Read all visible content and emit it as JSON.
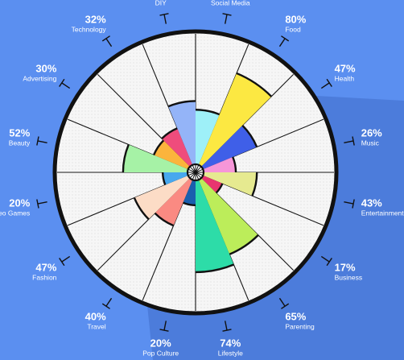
{
  "chart_data": {
    "type": "polar-bar",
    "value_unit": "%",
    "rlim": [
      0,
      100
    ],
    "grid": true,
    "colors": {
      "background": "#5b8ff0",
      "disc": "#f6f6f6",
      "rim": "#111111",
      "text": "#ffffff"
    },
    "categories": [
      {
        "name": "Social Media",
        "value": 44,
        "color": "#9ef0f8"
      },
      {
        "name": "Food",
        "value": 80,
        "color": "#fce842"
      },
      {
        "name": "Health",
        "value": 47,
        "color": "#3f5fe8"
      },
      {
        "name": "Music",
        "value": 26,
        "color": "#f696d8"
      },
      {
        "name": "Entertainment",
        "value": 43,
        "color": "#e6ea90"
      },
      {
        "name": "Business",
        "value": 17,
        "color": "#e8356f"
      },
      {
        "name": "Parenting",
        "value": 65,
        "color": "#bced5a"
      },
      {
        "name": "Lifestyle",
        "value": 74,
        "color": "#2ddca8"
      },
      {
        "name": "Pop Culture",
        "value": 20,
        "color": "#1a5fae"
      },
      {
        "name": "Travel",
        "value": 40,
        "color": "#fa8a82"
      },
      {
        "name": "Fashion",
        "value": 47,
        "color": "#fcdcc6"
      },
      {
        "name": "Video Games",
        "value": 20,
        "color": "#47a8ee"
      },
      {
        "name": "Beauty",
        "value": 52,
        "color": "#a6f2a6"
      },
      {
        "name": "Advertising",
        "value": 30,
        "color": "#fbb43c"
      },
      {
        "name": "Technology",
        "value": 32,
        "color": "#ef4c7c"
      },
      {
        "name": "DIY",
        "value": 51,
        "color": "#94b4f8"
      }
    ]
  }
}
